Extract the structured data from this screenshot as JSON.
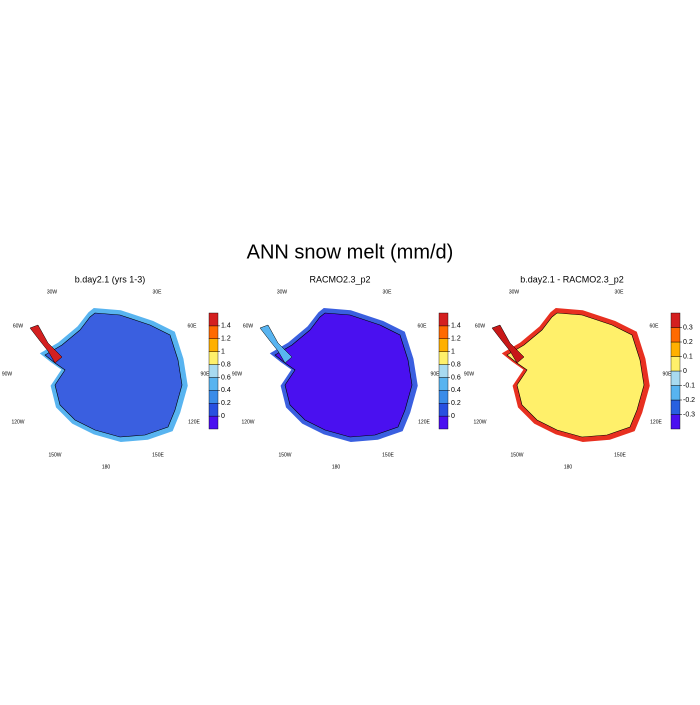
{
  "title": "ANN snow melt (mm/d)",
  "lon_labels": [
    "30W",
    "30E",
    "60W",
    "60E",
    "90W",
    "90E",
    "120W",
    "120E",
    "150W",
    "150E",
    "180"
  ],
  "panels": [
    {
      "title": "b.day2.1 (yrs 1-3)",
      "land_color": "#3a5fe0",
      "coast_color": "#58b4f0",
      "peninsula_color": "#d42020",
      "colorbar": {
        "colors": [
          "#4a10f0",
          "#2850e0",
          "#3a8ce8",
          "#58b4f0",
          "#a8daf0",
          "#fff06a",
          "#ffb000",
          "#ff6a00",
          "#d42020"
        ],
        "ticks": [
          0,
          0.2,
          0.4,
          0.6,
          0.8,
          1,
          1.2,
          1.4
        ]
      }
    },
    {
      "title": "RACMO2.3_p2",
      "land_color": "#4a10f0",
      "coast_color": "#3a5fe0",
      "peninsula_color": "#58b4f0",
      "colorbar": {
        "colors": [
          "#4a10f0",
          "#2850e0",
          "#3a8ce8",
          "#58b4f0",
          "#a8daf0",
          "#fff06a",
          "#ffb000",
          "#ff6a00",
          "#d42020"
        ],
        "ticks": [
          0,
          0.2,
          0.4,
          0.6,
          0.8,
          1,
          1.2,
          1.4
        ]
      }
    },
    {
      "title": "b.day2.1 - RACMO2.3_p2",
      "land_color": "#fff06a",
      "coast_color": "#e83020",
      "peninsula_color": "#c81818",
      "colorbar": {
        "colors": [
          "#4a10f0",
          "#2860e0",
          "#58b4f0",
          "#a8daf0",
          "#fff06a",
          "#ffb000",
          "#ff6a00",
          "#d42020"
        ],
        "ticks": [
          -0.3,
          -0.2,
          -0.1,
          0,
          0.1,
          0.2,
          0.3
        ]
      }
    }
  ]
}
